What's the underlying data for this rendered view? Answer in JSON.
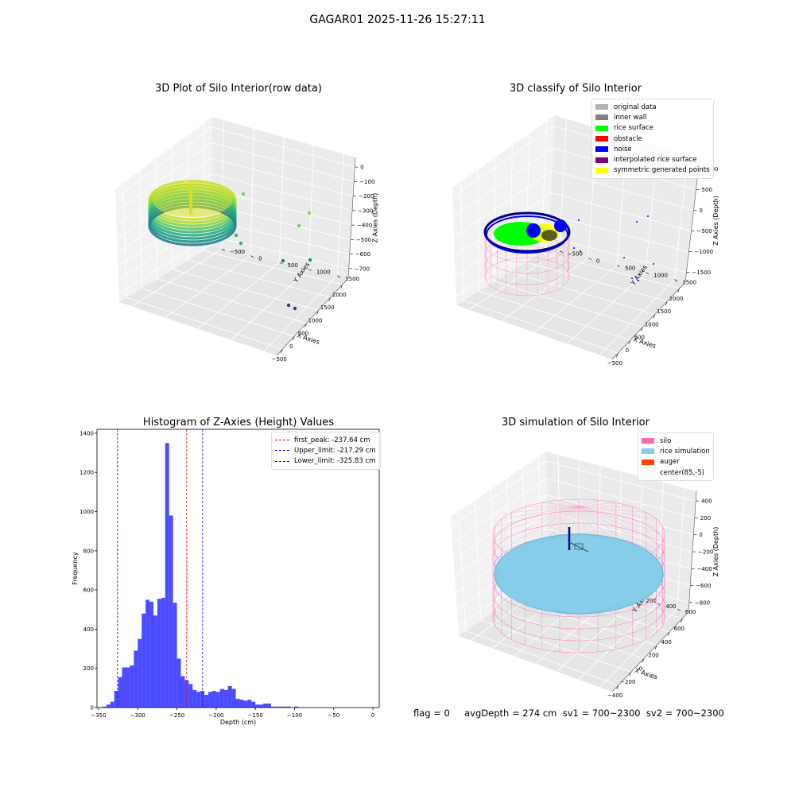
{
  "suptitle": "GAGAR01 2025-11-26 15:27:11",
  "footer": "flag = 0     avgDepth = 274 cm  sv1 = 700~2300  sv2 = 700~2300",
  "chart_data": [
    {
      "type": "scatter",
      "title": "3D Plot of Silo Interior(row data)",
      "xlabel": "X Axies",
      "ylabel": "Y Axies",
      "zlabel": "Z Axies (Depth)",
      "xticks": [
        "−500",
        "0",
        "500",
        "1000",
        "1500",
        "2000"
      ],
      "yticks": [
        "−500",
        "0",
        "500",
        "1000",
        "1500"
      ],
      "zticks": [
        "0",
        "−100",
        "−200",
        "−300",
        "−400",
        "−500",
        "−600",
        "−700"
      ],
      "colormap": "viridis"
    },
    {
      "type": "scatter",
      "title": "3D classify of Silo Interior",
      "xlabel": "X Axies",
      "ylabel": "Y Axies",
      "zlabel": "Z Axies (Depth)",
      "xticks": [
        "−500",
        "0",
        "500",
        "1000",
        "1500",
        "2000"
      ],
      "yticks": [
        "−500",
        "0",
        "500",
        "1000",
        "1500"
      ],
      "zticks": [
        "1000",
        "500",
        "0",
        "−500",
        "−1000",
        "−1500"
      ],
      "legend_position": "top-right",
      "legend": [
        {
          "label": "original data",
          "color": "#b3b3b3"
        },
        {
          "label": "inner wall",
          "color": "#808080"
        },
        {
          "label": "rice surface",
          "color": "#00ff00"
        },
        {
          "label": "obstacle",
          "color": "#ff0000"
        },
        {
          "label": "noise",
          "color": "#0000ff"
        },
        {
          "label": "interpolated rice surface",
          "color": "#800080"
        },
        {
          "label": "symmetric generated points",
          "color": "#ffff00"
        }
      ]
    },
    {
      "type": "bar",
      "title": "Histogram of Z-Axies (Height) Values",
      "xlabel": "Depth (cm)",
      "ylabel": "Frequency",
      "xlim": [
        -352,
        8
      ],
      "ylim": [
        0,
        1420
      ],
      "xticks": [
        -350,
        -300,
        -250,
        -200,
        -150,
        -100,
        -50,
        0
      ],
      "yticks": [
        0,
        200,
        400,
        600,
        800,
        1000,
        1200,
        1400
      ],
      "tick_labels_x": [
        "−350",
        "−300",
        "−250",
        "−200",
        "−150",
        "−100",
        "−50",
        "0"
      ],
      "tick_labels_y": [
        "0",
        "200",
        "400",
        "600",
        "800",
        "1000",
        "1200",
        "1400"
      ],
      "bin_start": -345,
      "bin_width": 5,
      "values": [
        5,
        15,
        30,
        85,
        155,
        205,
        205,
        215,
        290,
        350,
        480,
        550,
        540,
        470,
        555,
        560,
        1350,
        980,
        535,
        250,
        160,
        140,
        120,
        90,
        80,
        85,
        65,
        80,
        85,
        80,
        95,
        90,
        110,
        95,
        45,
        40,
        35,
        40,
        30,
        15,
        15,
        20,
        20,
        5,
        5,
        5,
        5,
        5,
        0,
        5
      ],
      "bar_color": "#0000ff",
      "bar_opacity": 0.7,
      "legend_position": "top-right",
      "reference_lines": [
        {
          "label": "first_peak: -237.64 cm",
          "x": -237.64,
          "color": "#ff0000"
        },
        {
          "label": "Upper_limit: -217.29 cm",
          "x": -217.29,
          "color": "#0000ff"
        },
        {
          "label": "Lower_limit: -325.83 cm",
          "x": -325.83,
          "color": "#0000ff"
        }
      ]
    },
    {
      "type": "scatter",
      "title": "3D simulation of Silo Interior",
      "xlabel": "X Axies",
      "ylabel": "Y Axies",
      "zlabel": "Z Axies (Depth)",
      "xticks": [
        "−400",
        "−200",
        "0",
        "200",
        "400",
        "600"
      ],
      "yticks": [
        "−600",
        "−400",
        "−200",
        "0",
        "200",
        "400",
        "600"
      ],
      "zticks": [
        "400",
        "200",
        "0",
        "−200",
        "−400",
        "−600",
        "−800"
      ],
      "legend_position": "top-right",
      "legend": [
        {
          "label": "silo",
          "color": "#ff69b4"
        },
        {
          "label": "rice simulation",
          "color": "#87ceeb"
        },
        {
          "label": "auger",
          "color": "#ff4500"
        },
        {
          "label": "center(85,-5)",
          "color": "#ffffff"
        }
      ]
    }
  ]
}
